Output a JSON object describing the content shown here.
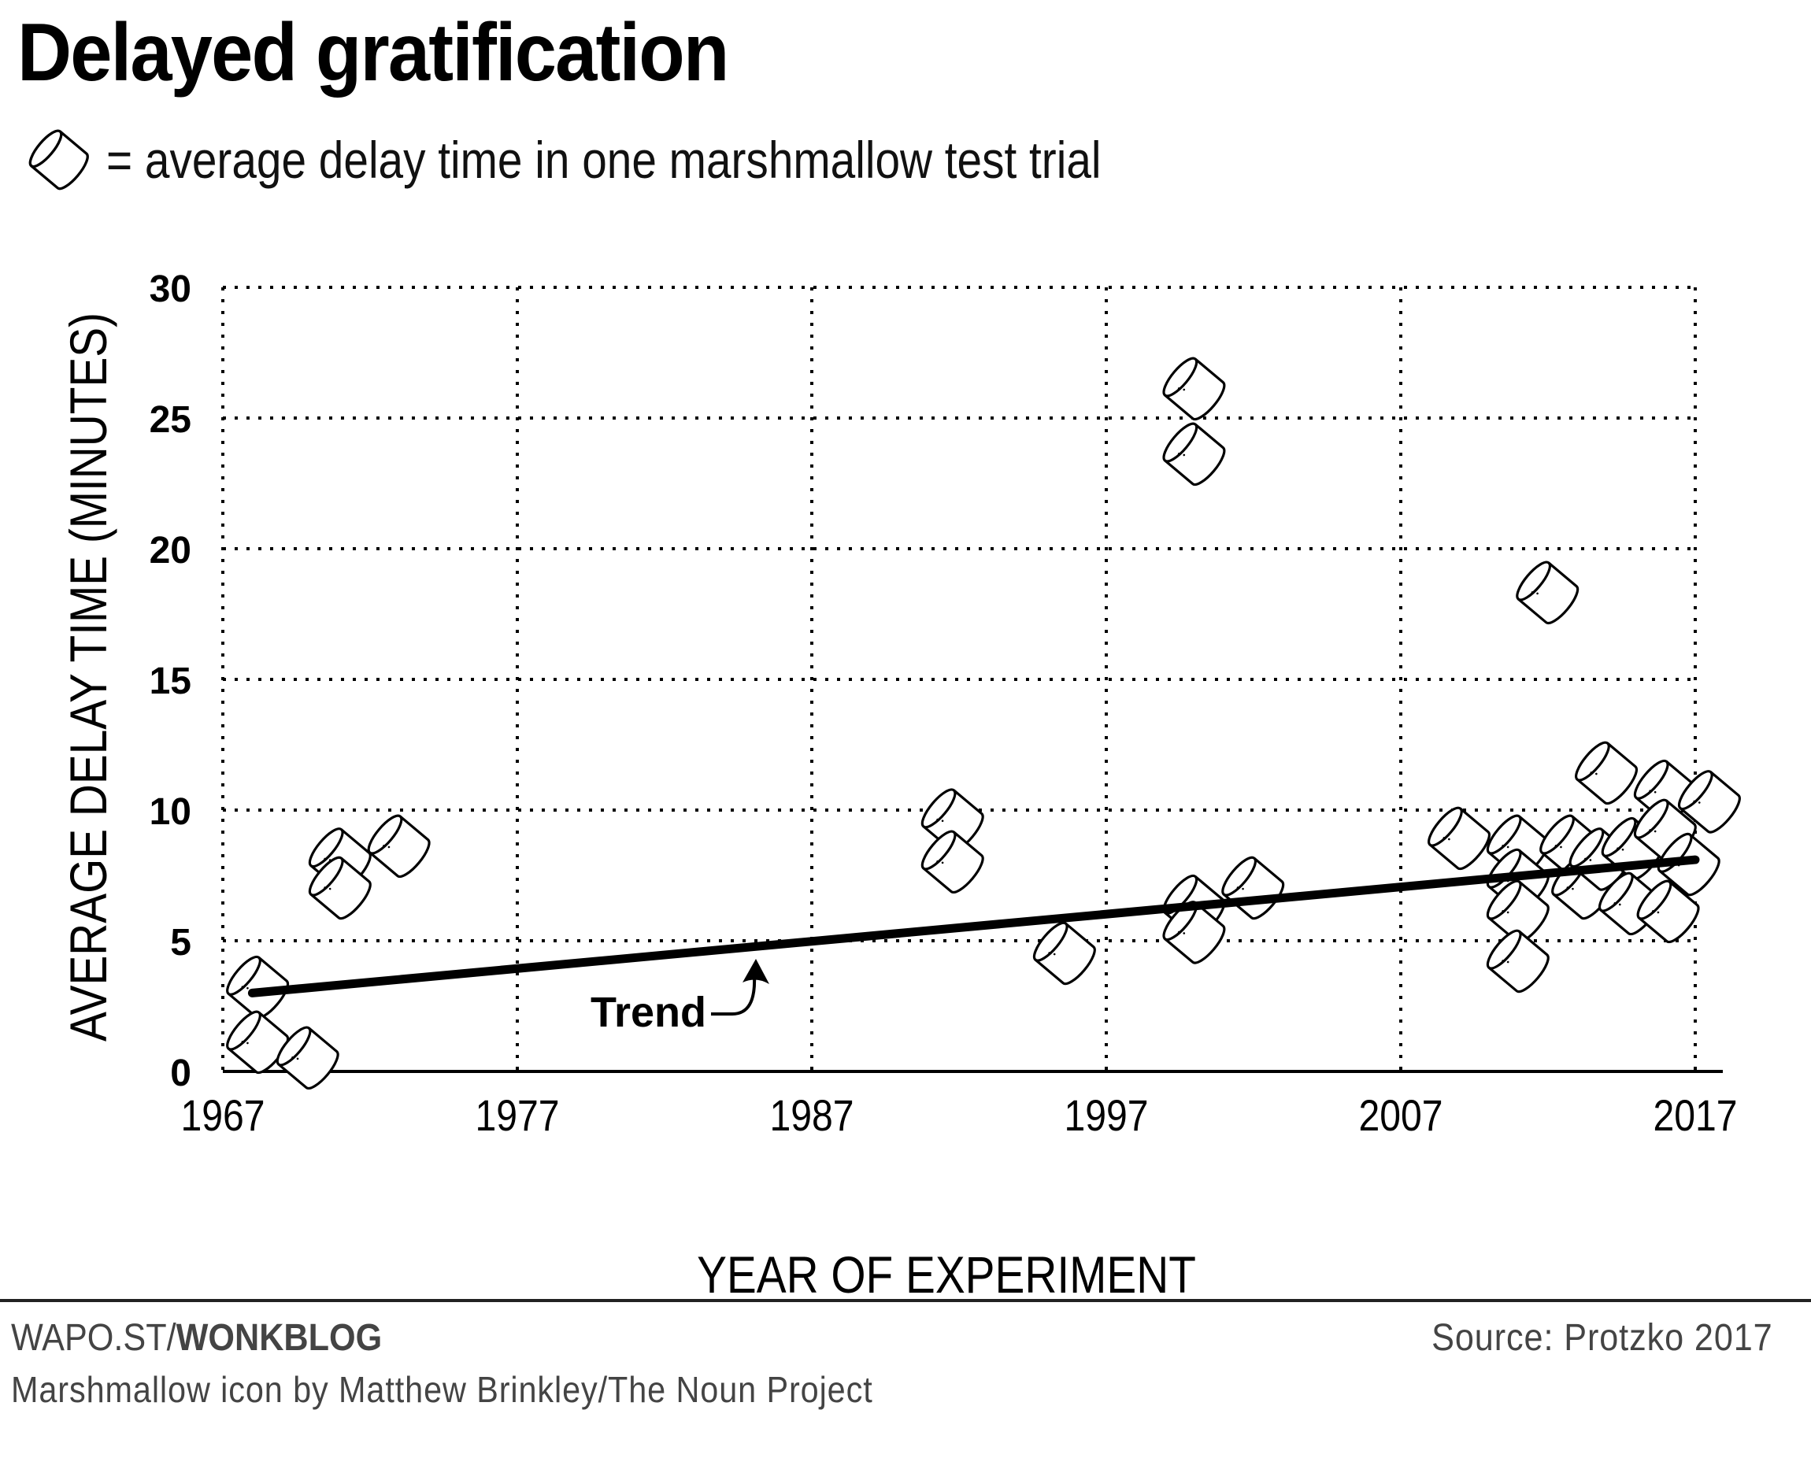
{
  "header": {
    "title": "Delayed gratification",
    "legend_icon": "marshmallow-icon",
    "legend_text": "= average delay time in one marshmallow test trial"
  },
  "footer": {
    "brand_prefix": "WAPO.ST/",
    "brand_bold": "WONKBLOG",
    "credit": "Marshmallow icon by Matthew Brinkley/The Noun Project",
    "source": "Source: Protzko 2017"
  },
  "chart_data": {
    "type": "scatter",
    "title": "Delayed gratification",
    "xlabel": "YEAR OF EXPERIMENT",
    "ylabel": "AVERAGE DELAY TIME (MINUTES)",
    "xlim": [
      1967,
      2017
    ],
    "ylim": [
      0,
      30
    ],
    "xticks": [
      1967,
      1977,
      1987,
      1997,
      2007,
      2017
    ],
    "xtick_labels": [
      "1967",
      "1977",
      "1987",
      "1997",
      "2007",
      "2017"
    ],
    "yticks": [
      0,
      5,
      10,
      15,
      20,
      25,
      30
    ],
    "ytick_labels": [
      "0",
      "5",
      "10",
      "15",
      "20",
      "25",
      "30"
    ],
    "grid": true,
    "marker": "marshmallow-icon",
    "points": [
      {
        "x": 1968.2,
        "y": 3.2
      },
      {
        "x": 1968.2,
        "y": 1.1
      },
      {
        "x": 1969.9,
        "y": 0.5
      },
      {
        "x": 1971.0,
        "y": 8.1
      },
      {
        "x": 1971.0,
        "y": 7.0
      },
      {
        "x": 1973.0,
        "y": 8.6
      },
      {
        "x": 1991.8,
        "y": 9.6
      },
      {
        "x": 1991.8,
        "y": 8.0
      },
      {
        "x": 1995.6,
        "y": 4.5
      },
      {
        "x": 2000.0,
        "y": 26.1
      },
      {
        "x": 2000.0,
        "y": 23.6
      },
      {
        "x": 2000.0,
        "y": 6.3
      },
      {
        "x": 2000.0,
        "y": 5.3
      },
      {
        "x": 2002.0,
        "y": 7.0
      },
      {
        "x": 2009.0,
        "y": 8.9
      },
      {
        "x": 2011.0,
        "y": 8.6
      },
      {
        "x": 2011.0,
        "y": 7.3
      },
      {
        "x": 2011.0,
        "y": 6.1
      },
      {
        "x": 2011.0,
        "y": 4.2
      },
      {
        "x": 2012.0,
        "y": 18.3
      },
      {
        "x": 2012.8,
        "y": 8.6
      },
      {
        "x": 2013.2,
        "y": 7.0
      },
      {
        "x": 2013.8,
        "y": 8.1
      },
      {
        "x": 2014.0,
        "y": 11.4
      },
      {
        "x": 2014.9,
        "y": 8.5
      },
      {
        "x": 2014.8,
        "y": 6.4
      },
      {
        "x": 2016.0,
        "y": 10.7
      },
      {
        "x": 2016.0,
        "y": 9.2
      },
      {
        "x": 2016.1,
        "y": 6.1
      },
      {
        "x": 2016.8,
        "y": 7.9
      },
      {
        "x": 2017.5,
        "y": 10.3
      }
    ],
    "trend": {
      "label": "Trend",
      "start": {
        "x": 1968,
        "y": 3.0
      },
      "end": {
        "x": 2017,
        "y": 8.1
      }
    }
  }
}
